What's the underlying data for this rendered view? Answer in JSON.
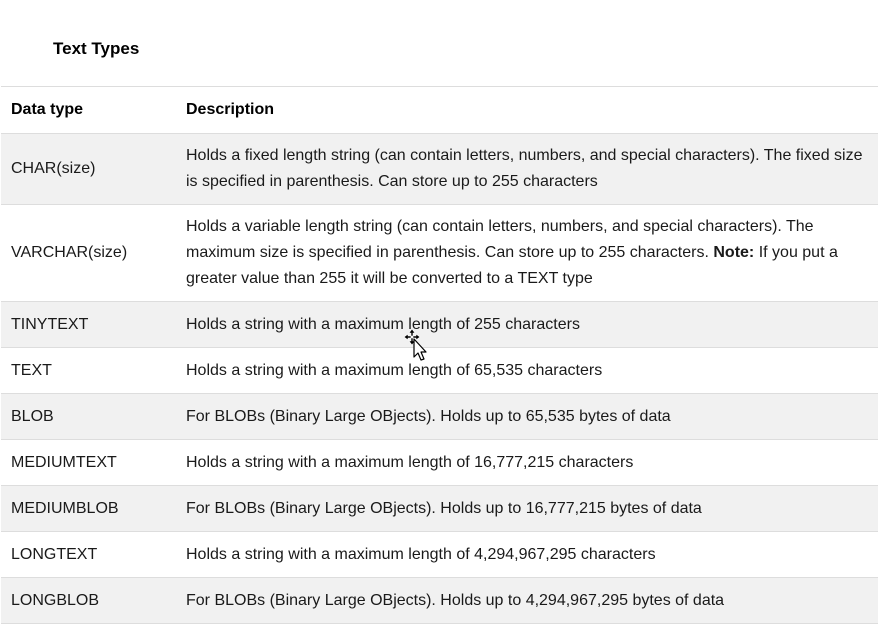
{
  "section": {
    "title": "Text Types"
  },
  "table": {
    "headers": {
      "type": "Data type",
      "description": "Description"
    },
    "rows": [
      {
        "type": "CHAR(size)",
        "description": "Holds a fixed length string (can contain letters, numbers, and special characters). The fixed size is specified in parenthesis. Can store up to 255 characters"
      },
      {
        "type": "VARCHAR(size)",
        "description": "Holds a variable length string (can contain letters, numbers, and special characters). The maximum size is specified in parenthesis. Can store up to 255 characters.",
        "note_label": "Note:",
        "note_text": "If you put a greater value than 255 it will be converted to a TEXT type"
      },
      {
        "type": "TINYTEXT",
        "description": "Holds a string with a maximum length of 255 characters"
      },
      {
        "type": "TEXT",
        "description": "Holds a string with a maximum length of 65,535 characters"
      },
      {
        "type": "BLOB",
        "description": "For BLOBs (Binary Large OBjects). Holds up to 65,535 bytes of data"
      },
      {
        "type": "MEDIUMTEXT",
        "description": "Holds a string with a maximum length of 16,777,215 characters"
      },
      {
        "type": "MEDIUMBLOB",
        "description": "For BLOBs (Binary Large OBjects). Holds up to 16,777,215 bytes of data"
      },
      {
        "type": "LONGTEXT",
        "description": "Holds a string with a maximum length of 4,294,967,295 characters"
      },
      {
        "type": "LONGBLOB",
        "description": "For BLOBs (Binary Large OBjects). Holds up to 4,294,967,295 bytes of data"
      }
    ]
  },
  "cursor": {
    "icon": "move-cursor-icon"
  }
}
